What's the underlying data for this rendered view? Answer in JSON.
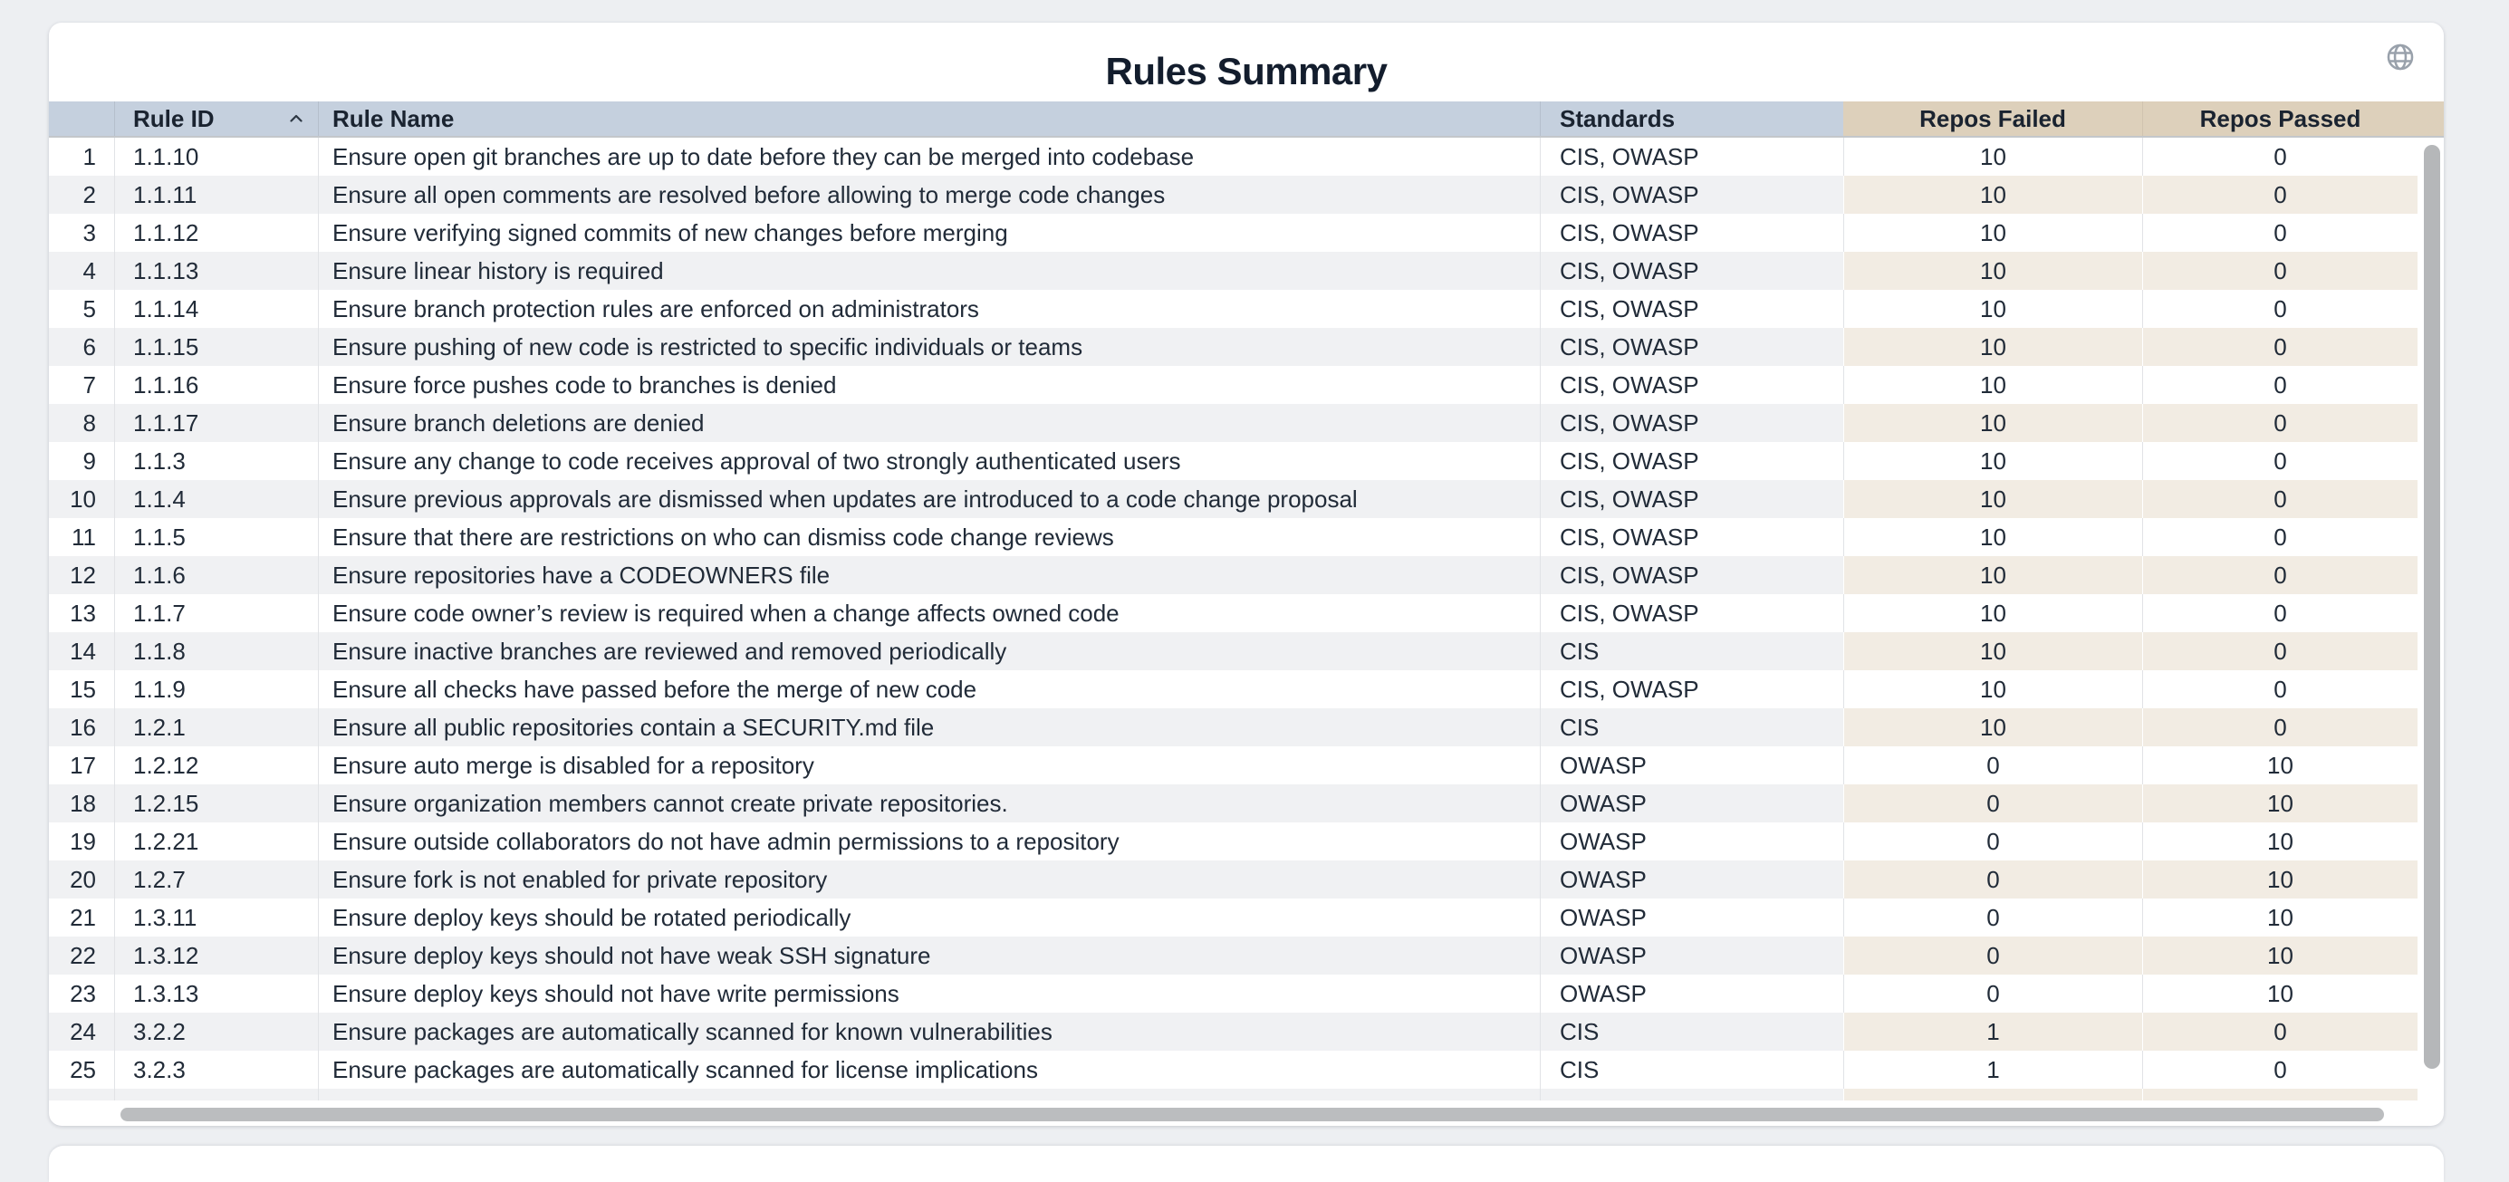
{
  "page": {
    "title": "Rules Summary"
  },
  "icons": {
    "globe": "globe-icon",
    "sort": "sort-ascending-icon"
  },
  "colors": {
    "header_blue": "#c5d0de",
    "header_tan": "#ddd0bb",
    "stripe_gray": "#f0f1f3",
    "stripe_tan": "#f2ece3",
    "text": "#212b38",
    "page_bg": "#edeff2",
    "scrollbar": "#b5b7b9"
  },
  "table": {
    "columns": {
      "rule_id": {
        "label": "Rule ID",
        "sorted": "ascending"
      },
      "rule_name": {
        "label": "Rule Name"
      },
      "standards": {
        "label": "Standards"
      },
      "repos_failed": {
        "label": "Repos Failed"
      },
      "repos_passed": {
        "label": "Repos Passed"
      }
    },
    "rows": [
      {
        "num": "1",
        "id": "1.1.10",
        "name": "Ensure open git branches are up to date before they can be merged into codebase",
        "standards": "CIS, OWASP",
        "failed": "10",
        "passed": "0"
      },
      {
        "num": "2",
        "id": "1.1.11",
        "name": "Ensure all open comments are resolved before allowing to merge code changes",
        "standards": "CIS, OWASP",
        "failed": "10",
        "passed": "0"
      },
      {
        "num": "3",
        "id": "1.1.12",
        "name": "Ensure verifying signed commits of new changes before merging",
        "standards": "CIS, OWASP",
        "failed": "10",
        "passed": "0"
      },
      {
        "num": "4",
        "id": "1.1.13",
        "name": "Ensure linear history is required",
        "standards": "CIS, OWASP",
        "failed": "10",
        "passed": "0"
      },
      {
        "num": "5",
        "id": "1.1.14",
        "name": "Ensure branch protection rules are enforced on administrators",
        "standards": "CIS, OWASP",
        "failed": "10",
        "passed": "0"
      },
      {
        "num": "6",
        "id": "1.1.15",
        "name": "Ensure pushing of new code is restricted to specific individuals or teams",
        "standards": "CIS, OWASP",
        "failed": "10",
        "passed": "0"
      },
      {
        "num": "7",
        "id": "1.1.16",
        "name": "Ensure force pushes code to branches is denied",
        "standards": "CIS, OWASP",
        "failed": "10",
        "passed": "0"
      },
      {
        "num": "8",
        "id": "1.1.17",
        "name": "Ensure branch deletions are denied",
        "standards": "CIS, OWASP",
        "failed": "10",
        "passed": "0"
      },
      {
        "num": "9",
        "id": "1.1.3",
        "name": "Ensure any change to code receives approval of two strongly authenticated users",
        "standards": "CIS, OWASP",
        "failed": "10",
        "passed": "0"
      },
      {
        "num": "10",
        "id": "1.1.4",
        "name": "Ensure previous approvals are dismissed when updates are introduced to a code change proposal",
        "standards": "CIS, OWASP",
        "failed": "10",
        "passed": "0"
      },
      {
        "num": "11",
        "id": "1.1.5",
        "name": "Ensure that there are restrictions on who can dismiss code change reviews",
        "standards": "CIS, OWASP",
        "failed": "10",
        "passed": "0"
      },
      {
        "num": "12",
        "id": "1.1.6",
        "name": "Ensure repositories have a CODEOWNERS file",
        "standards": "CIS, OWASP",
        "failed": "10",
        "passed": "0"
      },
      {
        "num": "13",
        "id": "1.1.7",
        "name": "Ensure code owner’s review is required when a change affects owned code",
        "standards": "CIS, OWASP",
        "failed": "10",
        "passed": "0"
      },
      {
        "num": "14",
        "id": "1.1.8",
        "name": "Ensure inactive branches are reviewed and removed periodically",
        "standards": "CIS",
        "failed": "10",
        "passed": "0"
      },
      {
        "num": "15",
        "id": "1.1.9",
        "name": "Ensure all checks have passed before the merge of new code",
        "standards": "CIS, OWASP",
        "failed": "10",
        "passed": "0"
      },
      {
        "num": "16",
        "id": "1.2.1",
        "name": "Ensure all public repositories contain a SECURITY.md file",
        "standards": "CIS",
        "failed": "10",
        "passed": "0"
      },
      {
        "num": "17",
        "id": "1.2.12",
        "name": "Ensure auto merge is disabled for a repository",
        "standards": "OWASP",
        "failed": "0",
        "passed": "10"
      },
      {
        "num": "18",
        "id": "1.2.15",
        "name": "Ensure organization members cannot create private repositories.",
        "standards": "OWASP",
        "failed": "0",
        "passed": "10"
      },
      {
        "num": "19",
        "id": "1.2.21",
        "name": "Ensure outside collaborators do not have admin permissions to a repository",
        "standards": "OWASP",
        "failed": "0",
        "passed": "10"
      },
      {
        "num": "20",
        "id": "1.2.7",
        "name": "Ensure fork is not enabled for private repository",
        "standards": "OWASP",
        "failed": "0",
        "passed": "10"
      },
      {
        "num": "21",
        "id": "1.3.11",
        "name": "Ensure deploy keys should be rotated periodically",
        "standards": "OWASP",
        "failed": "0",
        "passed": "10"
      },
      {
        "num": "22",
        "id": "1.3.12",
        "name": "Ensure deploy keys should not have weak SSH signature",
        "standards": "OWASP",
        "failed": "0",
        "passed": "10"
      },
      {
        "num": "23",
        "id": "1.3.13",
        "name": "Ensure deploy keys should not have write permissions",
        "standards": "OWASP",
        "failed": "0",
        "passed": "10"
      },
      {
        "num": "24",
        "id": "3.2.2",
        "name": "Ensure packages are automatically scanned for known vulnerabilities",
        "standards": "CIS",
        "failed": "1",
        "passed": "0"
      },
      {
        "num": "25",
        "id": "3.2.3",
        "name": "Ensure packages are automatically scanned for license implications",
        "standards": "CIS",
        "failed": "1",
        "passed": "0"
      }
    ]
  }
}
